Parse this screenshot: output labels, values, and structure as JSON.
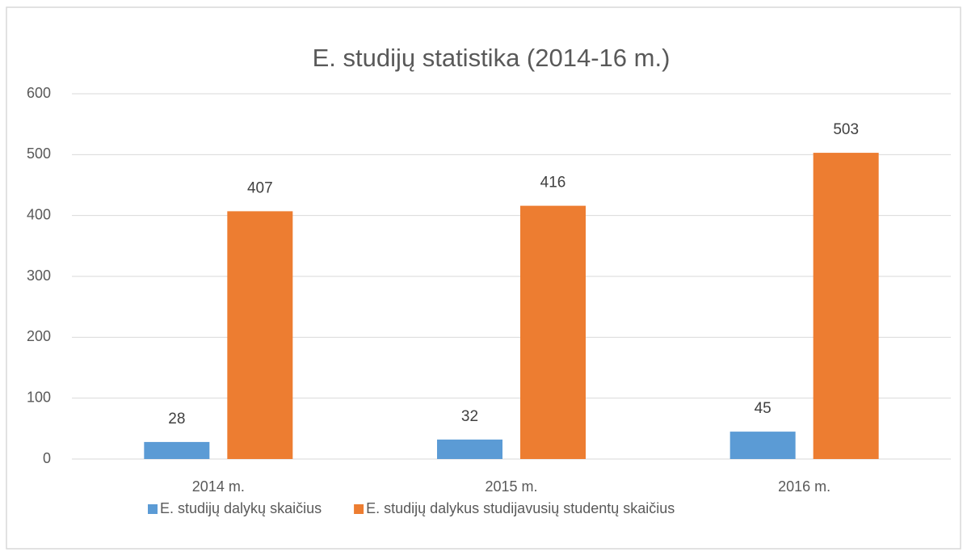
{
  "chart_data": {
    "type": "bar",
    "title": "E. studijų statistika (2014-16 m.)",
    "categories": [
      "2014 m.",
      "2015 m.",
      "2016 m."
    ],
    "series": [
      {
        "name": "E. studijų dalykų skaičius",
        "color": "#5b9bd5",
        "values": [
          28,
          32,
          45
        ]
      },
      {
        "name": "E. studijų dalykus studijavusių studentų skaičius",
        "color": "#ed7d31",
        "values": [
          407,
          416,
          503
        ]
      }
    ],
    "ylim": [
      0,
      600
    ],
    "yticks": [
      0,
      100,
      200,
      300,
      400,
      500,
      600
    ],
    "grid": true,
    "legend": "bottom"
  }
}
